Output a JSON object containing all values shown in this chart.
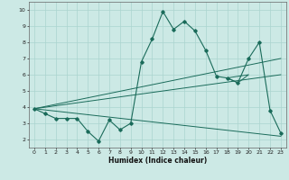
{
  "xlabel": "Humidex (Indice chaleur)",
  "bg_color": "#cce9e5",
  "grid_color": "#aad4cf",
  "line_color": "#1a6b5a",
  "xlim": [
    -0.5,
    23.5
  ],
  "ylim": [
    1.5,
    10.5
  ],
  "xticks": [
    0,
    1,
    2,
    3,
    4,
    5,
    6,
    7,
    8,
    9,
    10,
    11,
    12,
    13,
    14,
    15,
    16,
    17,
    18,
    19,
    20,
    21,
    22,
    23
  ],
  "yticks": [
    2,
    3,
    4,
    5,
    6,
    7,
    8,
    9,
    10
  ],
  "series": {
    "main": {
      "x": [
        0,
        1,
        2,
        3,
        4,
        5,
        6,
        7,
        8,
        9,
        10,
        11,
        12,
        13,
        14,
        15,
        16,
        17,
        18,
        19,
        20,
        21,
        22,
        23
      ],
      "y": [
        3.9,
        3.6,
        3.3,
        3.3,
        3.3,
        2.5,
        1.9,
        3.2,
        2.6,
        3.0,
        6.8,
        8.2,
        9.9,
        8.8,
        9.3,
        8.7,
        7.5,
        5.9,
        5.8,
        5.5,
        7.0,
        8.0,
        3.8,
        2.4
      ]
    },
    "line1": {
      "x": [
        0,
        23
      ],
      "y": [
        3.9,
        7.0
      ]
    },
    "line2": {
      "x": [
        0,
        23
      ],
      "y": [
        3.9,
        6.0
      ]
    },
    "line3": {
      "x": [
        0,
        23
      ],
      "y": [
        3.9,
        2.2
      ]
    },
    "triangle": {
      "x": [
        18,
        19,
        20,
        18
      ],
      "y": [
        5.8,
        5.5,
        6.0,
        5.8
      ]
    }
  }
}
